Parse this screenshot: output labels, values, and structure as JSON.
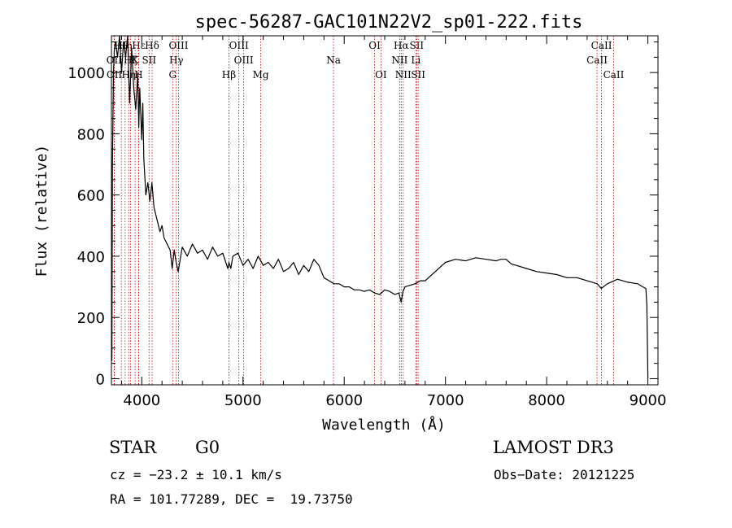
{
  "chart_data": {
    "type": "line",
    "title": "spec-56287-GAC101N22V2_sp01-222.fits",
    "xlabel": "Wavelength (Å)",
    "ylabel": "Flux (relative)",
    "xlim": [
      3700,
      9100
    ],
    "ylim": [
      -20,
      1120
    ],
    "xticks": [
      4000,
      5000,
      6000,
      7000,
      8000,
      9000
    ],
    "xtick_labels": [
      "4000",
      "5000",
      "6000",
      "7000",
      "8000",
      "9000"
    ],
    "yticks": [
      0,
      200,
      400,
      600,
      800,
      1000
    ],
    "ytick_labels": [
      "0",
      "200",
      "400",
      "600",
      "800",
      "1000"
    ],
    "series": [
      {
        "name": "flux",
        "color": "#000000",
        "x": [
          3700,
          3705,
          3710,
          3715,
          3720,
          3730,
          3740,
          3760,
          3780,
          3800,
          3820,
          3840,
          3860,
          3880,
          3900,
          3920,
          3940,
          3960,
          3970,
          3980,
          4000,
          4010,
          4020,
          4040,
          4060,
          4080,
          4100,
          4120,
          4150,
          4180,
          4200,
          4220,
          4250,
          4280,
          4300,
          4320,
          4340,
          4360,
          4400,
          4450,
          4500,
          4550,
          4600,
          4650,
          4700,
          4750,
          4800,
          4850,
          4861,
          4880,
          4900,
          4950,
          5000,
          5050,
          5100,
          5150,
          5200,
          5250,
          5300,
          5350,
          5400,
          5450,
          5500,
          5550,
          5600,
          5650,
          5700,
          5750,
          5800,
          5850,
          5900,
          5950,
          6000,
          6050,
          6100,
          6150,
          6200,
          6250,
          6300,
          6350,
          6400,
          6450,
          6500,
          6540,
          6563,
          6580,
          6600,
          6650,
          6700,
          6750,
          6800,
          6900,
          7000,
          7100,
          7200,
          7300,
          7400,
          7500,
          7550,
          7600,
          7650,
          7700,
          7800,
          7900,
          8000,
          8100,
          8200,
          8300,
          8400,
          8500,
          8540,
          8600,
          8700,
          8800,
          8900,
          8950,
          8980,
          8990,
          9000
        ],
        "y": [
          120,
          60,
          700,
          850,
          1000,
          1080,
          1100,
          1050,
          1120,
          1000,
          1100,
          1050,
          1120,
          900,
          1080,
          950,
          880,
          1000,
          820,
          950,
          780,
          900,
          720,
          600,
          640,
          580,
          640,
          560,
          520,
          480,
          500,
          460,
          440,
          420,
          360,
          420,
          380,
          350,
          430,
          400,
          440,
          410,
          420,
          390,
          430,
          400,
          410,
          360,
          380,
          360,
          400,
          410,
          370,
          390,
          360,
          400,
          370,
          380,
          360,
          390,
          350,
          360,
          380,
          340,
          370,
          350,
          390,
          370,
          330,
          320,
          310,
          310,
          300,
          300,
          290,
          290,
          285,
          290,
          280,
          275,
          290,
          285,
          275,
          280,
          250,
          285,
          300,
          305,
          310,
          320,
          320,
          350,
          380,
          390,
          385,
          395,
          390,
          385,
          390,
          390,
          375,
          370,
          360,
          350,
          345,
          340,
          330,
          330,
          320,
          310,
          295,
          310,
          325,
          315,
          310,
          300,
          295,
          240,
          0
        ]
      }
    ],
    "spectral_lines": [
      {
        "label": "Hθ",
        "wavelength": 3798,
        "row": 1
      },
      {
        "label": "OII",
        "wavelength": 3727,
        "row": 2
      },
      {
        "label": "OII",
        "wavelength": 3729,
        "row": 3
      },
      {
        "label": "Hη",
        "wavelength": 3835,
        "row": 1
      },
      {
        "label": "Hζ",
        "wavelength": 3889,
        "row": 2
      },
      {
        "label": "Hη",
        "wavelength": 3870,
        "row": 3
      },
      {
        "label": "Hε",
        "wavelength": 3970,
        "row": 1
      },
      {
        "label": "K",
        "wavelength": 3934,
        "row": 2
      },
      {
        "label": "H",
        "wavelength": 3968,
        "row": 3
      },
      {
        "label": "Hδ",
        "wavelength": 4102,
        "row": 1
      },
      {
        "label": "SII",
        "wavelength": 4072,
        "row": 2
      },
      {
        "label": "OIII",
        "wavelength": 4363,
        "row": 1
      },
      {
        "label": "Hγ",
        "wavelength": 4341,
        "row": 2
      },
      {
        "label": "G",
        "wavelength": 4305,
        "row": 3
      },
      {
        "label": "Hβ",
        "wavelength": 4861,
        "row": 3
      },
      {
        "label": "OIII",
        "wavelength": 4959,
        "row": 1
      },
      {
        "label": "OIII",
        "wavelength": 5007,
        "row": 2
      },
      {
        "label": "Mg",
        "wavelength": 5175,
        "row": 3
      },
      {
        "label": "Na",
        "wavelength": 5894,
        "row": 2
      },
      {
        "label": "OI",
        "wavelength": 6300,
        "row": 1
      },
      {
        "label": "OI",
        "wavelength": 6363,
        "row": 3
      },
      {
        "label": "Hα",
        "wavelength": 6563,
        "row": 1
      },
      {
        "label": "NII",
        "wavelength": 6548,
        "row": 2
      },
      {
        "label": "NII",
        "wavelength": 6583,
        "row": 3
      },
      {
        "label": "SII",
        "wavelength": 6716,
        "row": 1
      },
      {
        "label": "Li",
        "wavelength": 6708,
        "row": 2
      },
      {
        "label": "SII",
        "wavelength": 6731,
        "row": 3
      },
      {
        "label": "CaII",
        "wavelength": 8542,
        "row": 1
      },
      {
        "label": "CaII",
        "wavelength": 8498,
        "row": 2
      },
      {
        "label": "CaII",
        "wavelength": 8662,
        "row": 3
      }
    ],
    "line_color": "#cc0000"
  },
  "info": {
    "class": "STAR",
    "subclass": "G0",
    "survey": "LAMOST DR3",
    "redshift": "cz = −23.2 ± 10.1 km/s",
    "obs_date": "Obs−Date: 20121225",
    "coords": "RA = 101.77289, DEC =  19.73750"
  }
}
